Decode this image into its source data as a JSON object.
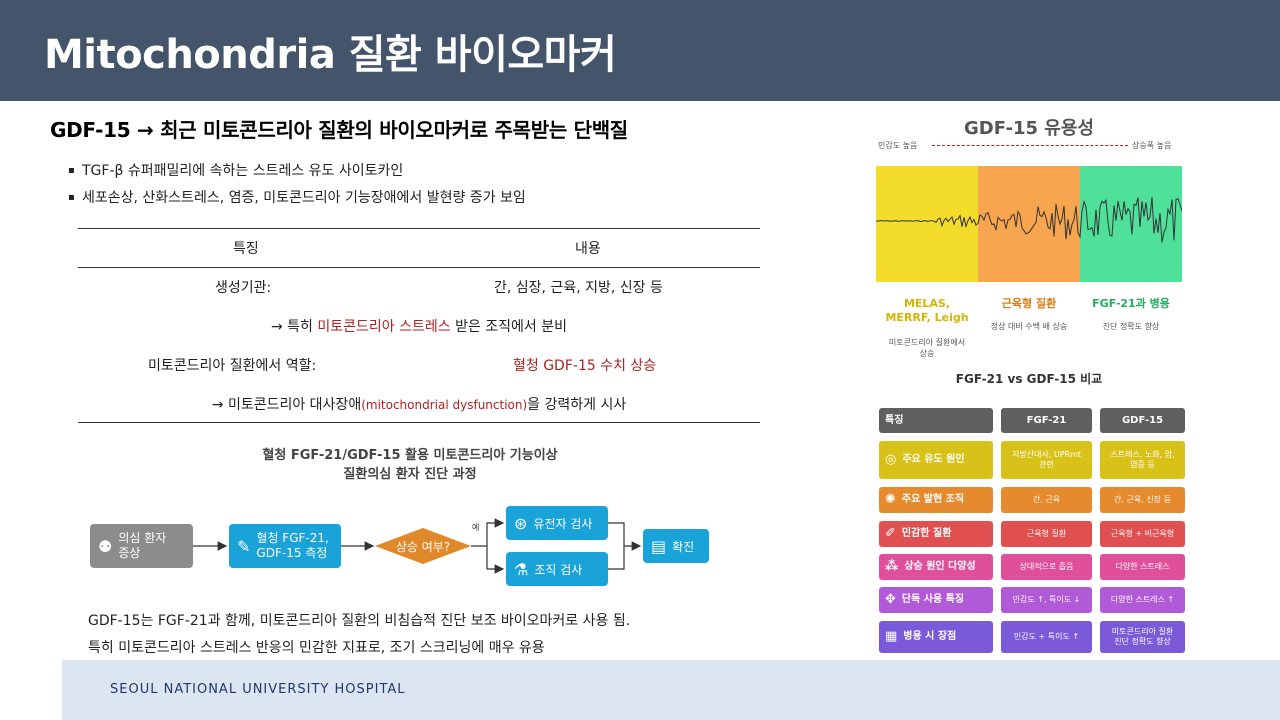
{
  "page_title": "Mitochondria 질환 바이오마커",
  "subtitle": "GDF-15 → 최근 미토콘드리아 질환의 바이오마커로 주목받는 단백질",
  "bullets": [
    "TGF-β 슈퍼패밀리에 속하는 스트레스 유도 사이토카인",
    "세포손상, 산화스트레스, 염증, 미토콘드리아 기능장애에서 발현량 증가 보임"
  ],
  "table": {
    "headers": [
      "특징",
      "내용"
    ],
    "row1": {
      "key": "생성기관:",
      "value": "간, 심장, 근육, 지방, 신장 등"
    },
    "row2": {
      "pre": "→ 특히 ",
      "highlight": "미토콘드리아 스트레스",
      "post": " 받은 조직에서 분비"
    },
    "row3": {
      "key": "미토콘드리아 질환에서 역할:",
      "value": "혈청 GDF-15 수치 상승"
    },
    "row4": {
      "pre": "→ 미토콘드리아 대사장애",
      "highlight": "(mitochondrial dysfunction)",
      "post": "을 강력하게 시사"
    }
  },
  "flow": {
    "title_line1": "혈청 FGF-21/GDF-15 활용 미토콘드리아 기능이상",
    "title_line2": "질환의심 환자 진단 과정",
    "step1": "의심 환자\n증상",
    "step2": "혈청 FGF-21,\nGDF-15 측정",
    "decision": "상승 여부?",
    "yes_label": "예",
    "step3a": "유전자 검사",
    "step3b": "조직 검사",
    "step4": "확진",
    "colors": {
      "grey": "#8c8c8c",
      "blue": "#1aa3d9",
      "orange": "#e0892a"
    }
  },
  "notes": [
    "GDF-15는 FGF-21과 함께, 미토콘드리아 질환의 비침습적 진단 보조 바이오마커로 사용 됨.",
    "특히 미토콘드리아 스트레스 반응의 민감한 지표로, 조기 스크리닝에 매우 유용"
  ],
  "footer": "SEOUL NATIONAL UNIVERSITY HOSPITAL",
  "infographic": {
    "title": "GDF-15 유용성",
    "axis_left": "민감도 높음",
    "axis_right": "상승폭 높음",
    "zones": [
      {
        "label": "MELAS,\nMERRF, Leigh",
        "sub": "미토콘드리아 질환에서\n상승",
        "color": "#f0d81e",
        "label_color": "#d6b400"
      },
      {
        "label": "근육형 질환",
        "sub": "정상 대비 수백 배 상승",
        "color": "#f59a3c",
        "label_color": "#e07a10"
      },
      {
        "label": "FGF-21과 병용",
        "sub": "진단 정확도 향상",
        "color": "#3ed98a",
        "label_color": "#1fae63"
      }
    ],
    "compare_title": "FGF-21 vs GDF-15 비교",
    "compare_headers": [
      "특징",
      "FGF-21",
      "GDF-15"
    ],
    "compare_rows": [
      {
        "label": "주요 유도 원인",
        "icon": "◎",
        "fgf": "지방산대사, UPRmt\n관련",
        "gdf": "스트레스, 노화, 암,\n염증 등",
        "color": "#d8c21a"
      },
      {
        "label": "주요 발현 조직",
        "icon": "✺",
        "fgf": "간, 근육",
        "gdf": "간, 근육, 신장 등",
        "color": "#e68a2e"
      },
      {
        "label": "민감한 질환",
        "icon": "✐",
        "fgf": "근육형 질환",
        "gdf": "근육형 + 비근육형",
        "color": "#e05050"
      },
      {
        "label": "상승 원인 다양성",
        "icon": "⁂",
        "fgf": "상대적으로 좁음",
        "gdf": "다양한 스트레스",
        "color": "#e0509a"
      },
      {
        "label": "단독 사용 특징",
        "icon": "✥",
        "fgf": "민감도 ↑, 특이도 ↓",
        "gdf": "다양한 스트레스 ↑",
        "color": "#b05ad8"
      },
      {
        "label": "병용 시 장점",
        "icon": "▦",
        "fgf": "민감도 + 특이도 ↑",
        "gdf": "미토콘드리아 질환\n진단 정확도 향상",
        "color": "#7a5ad8"
      }
    ]
  }
}
